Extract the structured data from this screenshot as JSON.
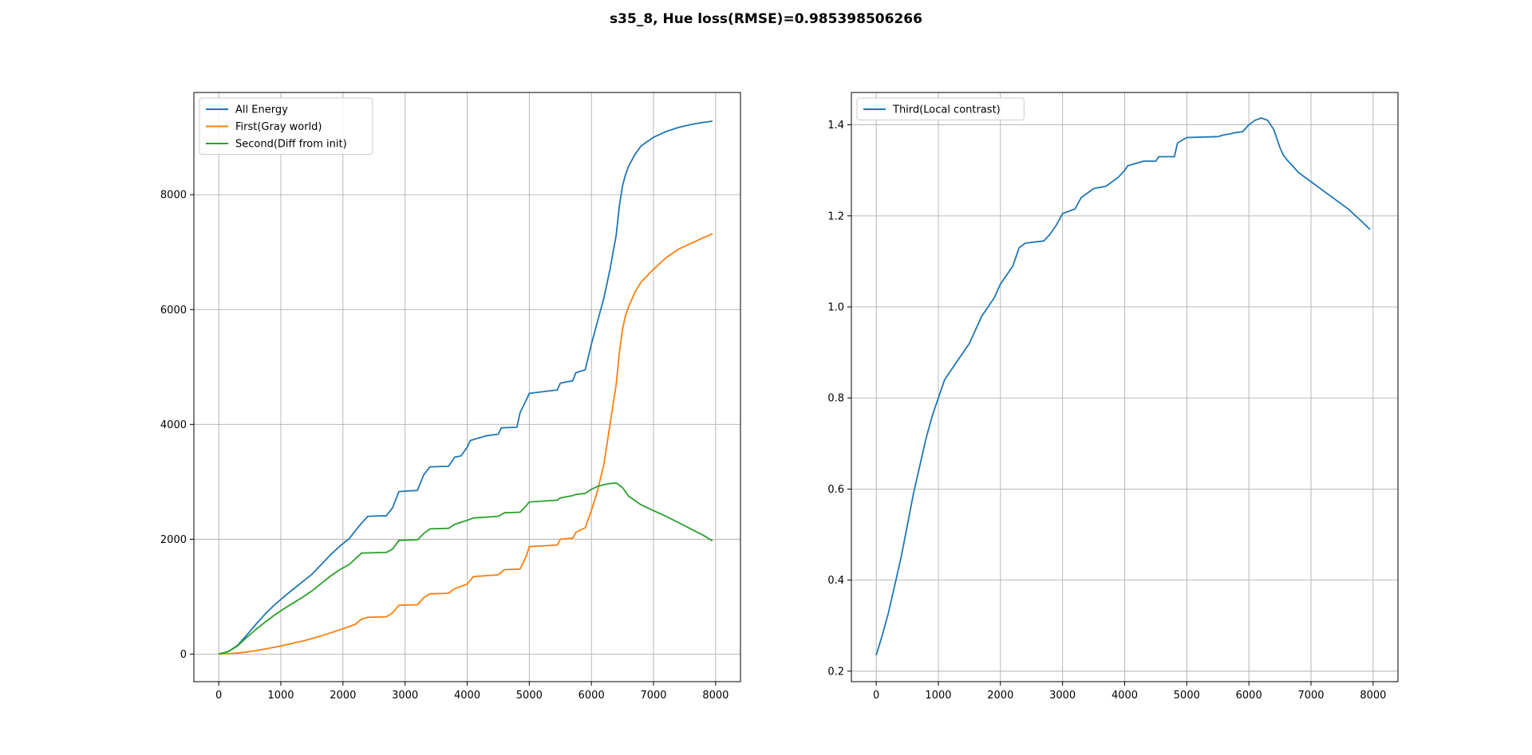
{
  "figure": {
    "suptitle": "s35_8, Hue loss(RMSE)=0.985398506266"
  },
  "chart_data": [
    {
      "type": "line",
      "title": "",
      "xlabel": "",
      "ylabel": "",
      "xlim": [
        -400,
        8400
      ],
      "ylim": [
        -480,
        9780
      ],
      "xticks": [
        0,
        1000,
        2000,
        3000,
        4000,
        5000,
        6000,
        7000,
        8000
      ],
      "yticks": [
        0,
        2000,
        4000,
        6000,
        8000
      ],
      "grid": true,
      "legend": "upper-left",
      "series": [
        {
          "name": "All Energy",
          "color": "#1f77b4",
          "x": [
            0,
            150,
            300,
            450,
            600,
            750,
            900,
            1050,
            1200,
            1350,
            1500,
            1650,
            1800,
            1950,
            2100,
            2200,
            2300,
            2400,
            2700,
            2800,
            2900,
            3200,
            3300,
            3400,
            3700,
            3800,
            3900,
            4000,
            4050,
            4300,
            4500,
            4550,
            4800,
            4850,
            4950,
            5000,
            5450,
            5500,
            5700,
            5750,
            5900,
            6000,
            6100,
            6200,
            6300,
            6400,
            6450,
            6500,
            6550,
            6600,
            6700,
            6800,
            7000,
            7200,
            7400,
            7600,
            7800,
            7950
          ],
          "y": [
            0,
            40,
            150,
            330,
            520,
            700,
            860,
            1000,
            1130,
            1260,
            1390,
            1560,
            1730,
            1880,
            2010,
            2150,
            2280,
            2400,
            2410,
            2550,
            2830,
            2850,
            3120,
            3260,
            3270,
            3430,
            3450,
            3600,
            3720,
            3800,
            3830,
            3940,
            3950,
            4200,
            4420,
            4540,
            4600,
            4720,
            4760,
            4900,
            4950,
            5400,
            5800,
            6200,
            6700,
            7300,
            7800,
            8150,
            8350,
            8500,
            8700,
            8850,
            9000,
            9100,
            9170,
            9220,
            9260,
            9280
          ]
        },
        {
          "name": "First(Gray world)",
          "color": "#ff7f0e",
          "x": [
            0,
            200,
            400,
            600,
            800,
            1000,
            1200,
            1400,
            1600,
            1800,
            2000,
            2200,
            2300,
            2400,
            2700,
            2800,
            2900,
            3200,
            3300,
            3400,
            3700,
            3800,
            4000,
            4100,
            4500,
            4600,
            4850,
            4950,
            5000,
            5450,
            5500,
            5700,
            5750,
            5900,
            6000,
            6100,
            6200,
            6300,
            6400,
            6450,
            6500,
            6550,
            6600,
            6700,
            6800,
            7000,
            7200,
            7400,
            7600,
            7800,
            7950
          ],
          "y": [
            0,
            8,
            30,
            60,
            100,
            140,
            190,
            240,
            300,
            370,
            440,
            520,
            610,
            640,
            650,
            720,
            850,
            860,
            980,
            1050,
            1060,
            1140,
            1220,
            1350,
            1380,
            1470,
            1480,
            1700,
            1870,
            1900,
            2000,
            2020,
            2120,
            2200,
            2500,
            2850,
            3300,
            4000,
            4700,
            5250,
            5650,
            5900,
            6050,
            6300,
            6480,
            6700,
            6900,
            7050,
            7150,
            7250,
            7320
          ]
        },
        {
          "name": "Second(Diff from init)",
          "color": "#2ca02c",
          "x": [
            0,
            150,
            300,
            450,
            600,
            750,
            900,
            1050,
            1200,
            1350,
            1500,
            1650,
            1800,
            1950,
            2100,
            2300,
            2700,
            2800,
            2900,
            3200,
            3300,
            3400,
            3700,
            3800,
            4000,
            4100,
            4500,
            4600,
            4850,
            4950,
            5000,
            5450,
            5500,
            5700,
            5750,
            5900,
            6000,
            6100,
            6200,
            6300,
            6400,
            6500,
            6600,
            6800,
            7000,
            7200,
            7400,
            7600,
            7800,
            7950
          ],
          "y": [
            0,
            40,
            140,
            290,
            430,
            560,
            680,
            790,
            890,
            990,
            1100,
            1230,
            1360,
            1470,
            1560,
            1760,
            1770,
            1830,
            1980,
            1990,
            2100,
            2180,
            2190,
            2260,
            2330,
            2370,
            2400,
            2460,
            2470,
            2580,
            2650,
            2680,
            2720,
            2760,
            2780,
            2800,
            2870,
            2920,
            2950,
            2970,
            2980,
            2900,
            2750,
            2600,
            2500,
            2400,
            2290,
            2180,
            2070,
            1970
          ]
        }
      ]
    },
    {
      "type": "line",
      "title": "",
      "xlabel": "",
      "ylabel": "",
      "xlim": [
        -400,
        8400
      ],
      "ylim": [
        0.177,
        1.471
      ],
      "xticks": [
        0,
        1000,
        2000,
        3000,
        4000,
        5000,
        6000,
        7000,
        8000
      ],
      "yticks": [
        0.2,
        0.4,
        0.6,
        0.8,
        1.0,
        1.2,
        1.4
      ],
      "ytick_labels": [
        "0.2",
        "0.4",
        "0.6",
        "0.8",
        "1.0",
        "1.2",
        "1.4"
      ],
      "grid": true,
      "legend": "upper-left",
      "series": [
        {
          "name": "Third(Local contrast)",
          "color": "#1f77b4",
          "x": [
            0,
            100,
            200,
            300,
            400,
            500,
            600,
            700,
            800,
            900,
            1000,
            1100,
            1200,
            1300,
            1400,
            1500,
            1600,
            1700,
            1800,
            1900,
            2000,
            2100,
            2200,
            2300,
            2400,
            2700,
            2800,
            2900,
            3000,
            3200,
            3300,
            3500,
            3700,
            3800,
            3900,
            4000,
            4050,
            4300,
            4500,
            4550,
            4800,
            4850,
            5000,
            5500,
            5600,
            5700,
            5750,
            5900,
            6000,
            6100,
            6200,
            6300,
            6400,
            6450,
            6500,
            6550,
            6600,
            6700,
            6800,
            7000,
            7200,
            7400,
            7600,
            7800,
            7950
          ],
          "y": [
            0.235,
            0.28,
            0.33,
            0.39,
            0.45,
            0.52,
            0.59,
            0.65,
            0.71,
            0.76,
            0.8,
            0.84,
            0.86,
            0.88,
            0.9,
            0.92,
            0.95,
            0.98,
            1.0,
            1.02,
            1.05,
            1.07,
            1.09,
            1.13,
            1.14,
            1.145,
            1.16,
            1.18,
            1.205,
            1.215,
            1.24,
            1.26,
            1.265,
            1.275,
            1.285,
            1.3,
            1.31,
            1.32,
            1.32,
            1.33,
            1.33,
            1.36,
            1.372,
            1.374,
            1.378,
            1.38,
            1.382,
            1.385,
            1.4,
            1.41,
            1.415,
            1.41,
            1.39,
            1.37,
            1.35,
            1.335,
            1.325,
            1.31,
            1.295,
            1.275,
            1.255,
            1.235,
            1.215,
            1.19,
            1.17
          ]
        }
      ]
    }
  ]
}
